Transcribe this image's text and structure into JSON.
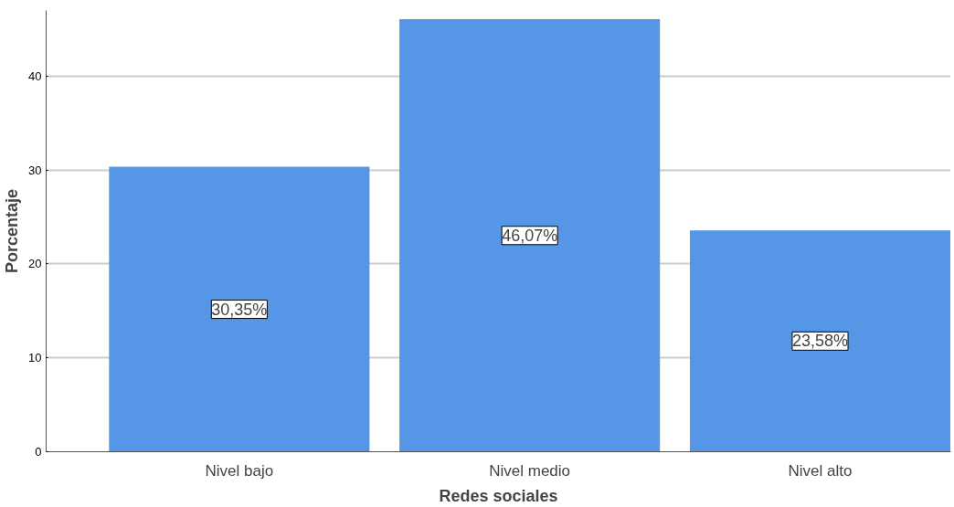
{
  "chart_data": {
    "type": "bar",
    "xlabel": "Redes sociales",
    "ylabel": "Porcentaje",
    "categories": [
      "Nivel bajo",
      "Nivel medio",
      "Nivel alto"
    ],
    "values": [
      30.35,
      46.07,
      23.58
    ],
    "value_labels": [
      "30,35%",
      "46,07%",
      "23,58%"
    ],
    "color": "#5596e6",
    "ylim": [
      0,
      47
    ],
    "yticks": [
      0,
      10,
      20,
      30,
      40
    ],
    "grid": "y"
  }
}
